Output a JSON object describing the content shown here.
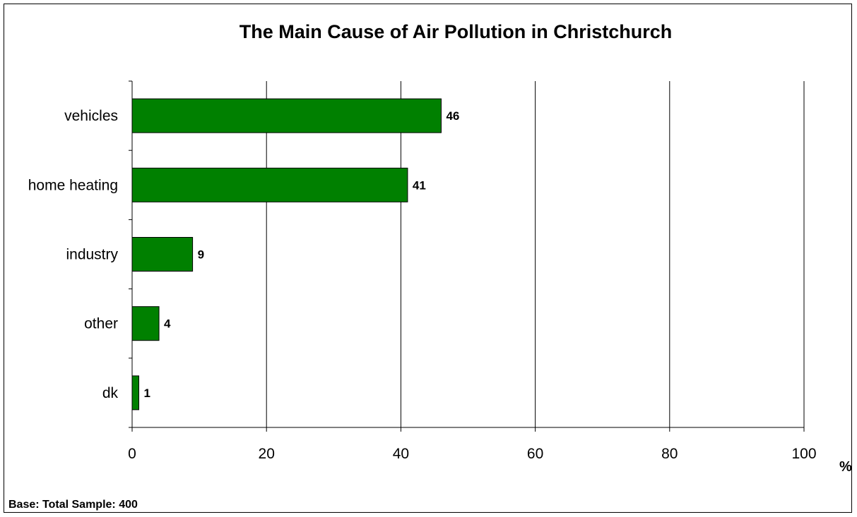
{
  "chart_data": {
    "type": "bar",
    "orientation": "horizontal",
    "title": "The Main Cause of Air Pollution in Christchurch",
    "categories": [
      "vehicles",
      "home heating",
      "industry",
      "other",
      "dk"
    ],
    "values": [
      46,
      41,
      9,
      4,
      1
    ],
    "xlabel": "%",
    "ylabel": "",
    "xlim": [
      0,
      100
    ],
    "x_ticks": [
      0,
      20,
      40,
      60,
      80,
      100
    ],
    "grid": "vertical",
    "bar_color": "#008000",
    "footnote": "Base: Total Sample: 400"
  }
}
